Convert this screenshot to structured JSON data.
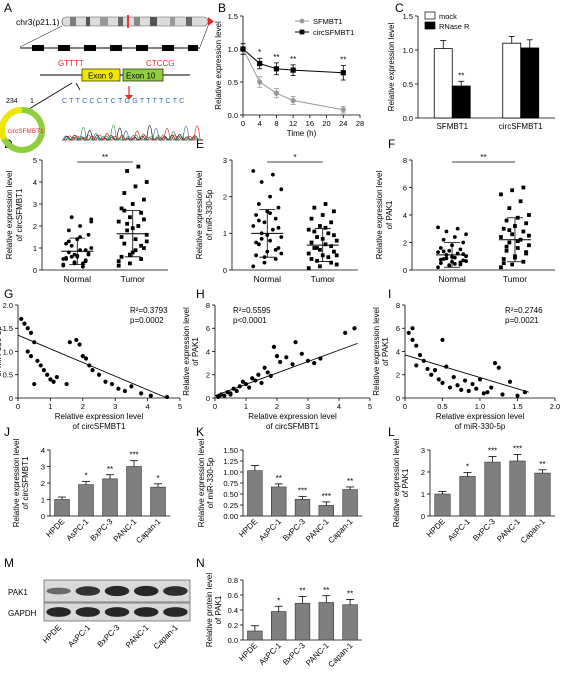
{
  "figure": {
    "letters": [
      "A",
      "B",
      "C",
      "D",
      "E",
      "F",
      "G",
      "H",
      "I",
      "J",
      "K",
      "L",
      "M",
      "N"
    ]
  },
  "panel_a": {
    "chromosome": "chr3(p21.1)",
    "exon9": "Exon 9",
    "exon10": "Exon 10",
    "left_seq": "GTTTT",
    "right_seq": "CTCCG",
    "circ_name": "circSFMBT1",
    "circ_len": "234",
    "circ_start": "1",
    "circ_exon_a": "Exon 9",
    "circ_exon_b": "Exon 10",
    "sanger_seq": "C T T C C C T C T G G T T T T C T C",
    "colors": {
      "exon": "#f1e600",
      "exon10": "#8fce3f",
      "red": "#e8262b",
      "chrom_band": "#b5b5b5"
    }
  },
  "chart_data": [
    {
      "id": "B",
      "type": "line",
      "ylabel": "Relative expression level",
      "xlabel": "Time (h)",
      "x": [
        0,
        4,
        8,
        12,
        24
      ],
      "xticks": [
        0,
        4,
        8,
        12,
        16,
        20,
        24,
        28
      ],
      "xlim": [
        0,
        28
      ],
      "ylim": [
        0,
        1.5
      ],
      "yticks": [
        0.0,
        0.5,
        1.0,
        1.5
      ],
      "legend_position": "top-right",
      "series": [
        {
          "name": "SFMBT1",
          "values": [
            1.0,
            0.5,
            0.33,
            0.22,
            0.08
          ],
          "errors": [
            0.08,
            0.08,
            0.07,
            0.06,
            0.05
          ],
          "color": "#999999",
          "marker": "circle"
        },
        {
          "name": "circSFMBT1",
          "values": [
            1.0,
            0.78,
            0.7,
            0.68,
            0.64
          ],
          "errors": [
            0.08,
            0.08,
            0.09,
            0.08,
            0.11
          ],
          "color": "#000000",
          "marker": "square"
        }
      ],
      "annotations": [
        {
          "x": 4,
          "text": "*"
        },
        {
          "x": 8,
          "text": "**"
        },
        {
          "x": 12,
          "text": "**"
        },
        {
          "x": 24,
          "text": "**"
        }
      ]
    },
    {
      "id": "C",
      "type": "bar",
      "ylabel": "Relative expression level",
      "categories": [
        "SFMBT1",
        "circSFMBT1"
      ],
      "ylim": [
        0,
        1.5
      ],
      "yticks": [
        0.0,
        0.5,
        1.0,
        1.5
      ],
      "legend_position": "top",
      "series": [
        {
          "name": "mock",
          "values": [
            1.02,
            1.1
          ],
          "errors": [
            0.12,
            0.1
          ],
          "color": "#ffffff"
        },
        {
          "name": "RNase R",
          "values": [
            0.47,
            1.03
          ],
          "errors": [
            0.07,
            0.12
          ],
          "color": "#000000"
        }
      ],
      "annotations": [
        {
          "category": "SFMBT1",
          "series": "RNase R",
          "text": "**"
        }
      ]
    },
    {
      "id": "D",
      "type": "scatter",
      "ylabel": "Relative expression level of circSFMBT1",
      "categories": [
        "Normal",
        "Tumor"
      ],
      "ylim": [
        0,
        5
      ],
      "yticks": [
        0,
        1,
        2,
        3,
        4,
        5
      ],
      "means": [
        0.85,
        1.65
      ],
      "sd": [
        0.6,
        1.05
      ],
      "groups": [
        [
          0.2,
          0.3,
          0.4,
          0.5,
          0.6,
          0.7,
          0.8,
          0.9,
          1.0,
          1.1,
          0.3,
          0.5,
          0.7,
          0.9,
          1.2,
          1.4,
          1.6,
          1.8,
          2.0,
          2.2,
          2.4,
          0.15,
          0.25,
          0.35,
          0.45,
          0.55,
          0.65,
          0.75,
          1.3,
          1.5,
          2.3,
          0.6
        ],
        [
          0.2,
          0.3,
          0.5,
          0.6,
          0.8,
          1.0,
          1.2,
          1.4,
          1.6,
          1.8,
          2.0,
          2.2,
          2.4,
          2.6,
          2.8,
          3.0,
          3.2,
          3.5,
          3.8,
          4.0,
          4.5,
          4.7,
          0.4,
          0.7,
          1.1,
          1.5,
          1.9,
          2.3,
          2.7,
          0.9,
          1.3,
          2.1
        ]
      ],
      "markers": [
        "circle",
        "square"
      ],
      "significance": "**"
    },
    {
      "id": "E",
      "type": "scatter",
      "ylabel": "Relative expression level of miR-330-5p",
      "categories": [
        "Normal",
        "Tumor"
      ],
      "ylim": [
        0,
        3
      ],
      "yticks": [
        0,
        1,
        2,
        3
      ],
      "means": [
        1.0,
        0.68
      ],
      "sd": [
        0.65,
        0.45
      ],
      "groups": [
        [
          0.1,
          0.2,
          0.3,
          0.4,
          0.5,
          0.6,
          0.7,
          0.8,
          0.9,
          1.0,
          1.1,
          1.2,
          1.3,
          1.4,
          1.5,
          1.6,
          1.7,
          1.8,
          2.0,
          2.2,
          2.4,
          2.6,
          2.7,
          0.35,
          0.55,
          0.75,
          0.95,
          1.15,
          1.35,
          1.55,
          0.45,
          0.85
        ],
        [
          0.05,
          0.1,
          0.2,
          0.3,
          0.4,
          0.5,
          0.6,
          0.7,
          0.8,
          0.9,
          1.0,
          1.1,
          1.2,
          1.3,
          1.4,
          1.5,
          1.6,
          1.7,
          1.8,
          0.15,
          0.25,
          0.35,
          0.45,
          0.55,
          0.65,
          0.75,
          0.85,
          0.95,
          1.05,
          1.15,
          0.4,
          0.6
        ]
      ],
      "markers": [
        "circle",
        "square"
      ],
      "significance": "*"
    },
    {
      "id": "F",
      "type": "scatter",
      "ylabel": "Relative expression level of PAK1",
      "categories": [
        "Normal",
        "Tumor"
      ],
      "ylim": [
        0,
        8
      ],
      "yticks": [
        0,
        2,
        4,
        6,
        8
      ],
      "means": [
        1.1,
        2.2
      ],
      "sd": [
        0.9,
        1.6
      ],
      "groups": [
        [
          0.2,
          0.3,
          0.4,
          0.5,
          0.6,
          0.7,
          0.8,
          0.9,
          1.0,
          1.1,
          1.2,
          1.3,
          1.4,
          1.5,
          1.6,
          1.8,
          2.0,
          2.2,
          2.4,
          2.6,
          2.8,
          3.0,
          3.1,
          0.35,
          0.55,
          0.75,
          0.95,
          1.15,
          1.35,
          0.45,
          0.65,
          0.85
        ],
        [
          0.2,
          0.4,
          0.6,
          0.8,
          1.0,
          1.2,
          1.4,
          1.6,
          1.8,
          2.0,
          2.2,
          2.4,
          2.6,
          2.8,
          3.0,
          3.2,
          3.4,
          3.6,
          3.8,
          4.0,
          4.5,
          5.0,
          5.5,
          5.8,
          6.0,
          0.5,
          0.9,
          1.3,
          1.7,
          2.1,
          2.5,
          2.9
        ]
      ],
      "markers": [
        "circle",
        "square"
      ],
      "significance": "**"
    },
    {
      "id": "G",
      "type": "scatter",
      "ylabel": "Relative expression level of miR-330-5p",
      "xlabel": "Relative expression level of circSFMBT1",
      "xlim": [
        0,
        5
      ],
      "xticks": [
        0,
        1,
        2,
        3,
        4,
        5
      ],
      "ylim": [
        0,
        2
      ],
      "yticks": [
        0,
        0.5,
        1.0,
        1.5,
        2.0
      ],
      "points": [
        [
          0.1,
          1.7
        ],
        [
          0.2,
          1.6
        ],
        [
          0.3,
          1.5
        ],
        [
          0.4,
          1.4
        ],
        [
          0.5,
          1.2
        ],
        [
          0.3,
          1.0
        ],
        [
          0.4,
          0.9
        ],
        [
          0.6,
          0.8
        ],
        [
          0.8,
          0.6
        ],
        [
          0.9,
          0.5
        ],
        [
          1.0,
          0.4
        ],
        [
          1.1,
          0.35
        ],
        [
          0.5,
          0.3
        ],
        [
          0.7,
          0.7
        ],
        [
          1.2,
          0.45
        ],
        [
          1.5,
          0.3
        ],
        [
          1.6,
          1.2
        ],
        [
          1.8,
          1.25
        ],
        [
          1.9,
          1.15
        ],
        [
          2.0,
          0.9
        ],
        [
          2.1,
          0.85
        ],
        [
          2.2,
          0.7
        ],
        [
          2.3,
          0.6
        ],
        [
          2.5,
          0.5
        ],
        [
          2.7,
          0.35
        ],
        [
          2.9,
          0.3
        ],
        [
          3.1,
          0.2
        ],
        [
          3.3,
          0.15
        ],
        [
          3.5,
          0.25
        ],
        [
          3.8,
          0.1
        ],
        [
          4.1,
          0.05
        ],
        [
          4.6,
          0.02
        ]
      ],
      "fit": [
        [
          0,
          1.35
        ],
        [
          4.6,
          0
        ]
      ],
      "stats": [
        "R²=0.3793",
        "p=0.0002"
      ]
    },
    {
      "id": "H",
      "type": "scatter",
      "ylabel": "Relative expression level of PAK1",
      "xlabel": "Relative expression level of circSFMBT1",
      "xlim": [
        0,
        5
      ],
      "xticks": [
        0,
        1,
        2,
        3,
        4,
        5
      ],
      "ylim": [
        0,
        8
      ],
      "yticks": [
        0,
        2,
        4,
        6,
        8
      ],
      "points": [
        [
          0.1,
          0.1
        ],
        [
          0.15,
          0.2
        ],
        [
          0.2,
          0.3
        ],
        [
          0.3,
          0.2
        ],
        [
          0.4,
          0.5
        ],
        [
          0.5,
          0.4
        ],
        [
          0.6,
          0.8
        ],
        [
          0.7,
          0.6
        ],
        [
          0.8,
          1.0
        ],
        [
          0.9,
          1.4
        ],
        [
          1.0,
          1.2
        ],
        [
          1.1,
          0.9
        ],
        [
          1.2,
          1.7
        ],
        [
          1.3,
          1.5
        ],
        [
          1.4,
          2.0
        ],
        [
          1.5,
          1.3
        ],
        [
          1.6,
          2.6
        ],
        [
          1.7,
          2.2
        ],
        [
          1.8,
          1.9
        ],
        [
          1.9,
          4.4
        ],
        [
          2.0,
          3.6
        ],
        [
          2.1,
          3.1
        ],
        [
          2.3,
          3.5
        ],
        [
          2.5,
          2.9
        ],
        [
          2.6,
          4.8
        ],
        [
          2.8,
          3.8
        ],
        [
          3.0,
          3.2
        ],
        [
          3.2,
          3.0
        ],
        [
          3.4,
          3.4
        ],
        [
          4.2,
          5.6
        ],
        [
          4.5,
          6.0
        ],
        [
          0.5,
          0.3
        ]
      ],
      "fit": [
        [
          0,
          0.2
        ],
        [
          4.6,
          4.7
        ]
      ],
      "stats": [
        "R²=0.5595",
        "p<0.0001"
      ]
    },
    {
      "id": "I",
      "type": "scatter",
      "ylabel": "Relative expression level of PAK1",
      "xlabel": "Relative expression level of miR-330-5p",
      "xlim": [
        0,
        2
      ],
      "xticks": [
        0,
        0.5,
        1.0,
        1.5,
        2.0
      ],
      "ylim": [
        0,
        8
      ],
      "yticks": [
        0,
        2,
        4,
        6,
        8
      ],
      "points": [
        [
          0.05,
          5.6
        ],
        [
          0.1,
          6.0
        ],
        [
          0.1,
          5.0
        ],
        [
          0.15,
          4.5
        ],
        [
          0.2,
          3.7
        ],
        [
          0.15,
          2.8
        ],
        [
          0.25,
          3.2
        ],
        [
          0.3,
          2.5
        ],
        [
          0.35,
          2.0
        ],
        [
          0.4,
          2.4
        ],
        [
          0.45,
          1.6
        ],
        [
          0.5,
          1.3
        ],
        [
          0.55,
          2.7
        ],
        [
          0.6,
          0.9
        ],
        [
          0.65,
          1.8
        ],
        [
          0.7,
          1.1
        ],
        [
          0.75,
          0.7
        ],
        [
          0.8,
          1.5
        ],
        [
          0.85,
          0.6
        ],
        [
          0.9,
          1.2
        ],
        [
          0.95,
          0.8
        ],
        [
          1.0,
          1.6
        ],
        [
          1.05,
          0.4
        ],
        [
          1.1,
          0.5
        ],
        [
          1.15,
          0.9
        ],
        [
          1.2,
          3.0
        ],
        [
          1.25,
          2.6
        ],
        [
          1.3,
          0.3
        ],
        [
          1.4,
          1.4
        ],
        [
          1.5,
          0.2
        ],
        [
          1.6,
          0.5
        ],
        [
          0.5,
          5.0
        ]
      ],
      "fit": [
        [
          0,
          3.7
        ],
        [
          1.65,
          0.5
        ]
      ],
      "stats": [
        "R²=0.2746",
        "p=0.0021"
      ]
    },
    {
      "id": "J",
      "type": "bar",
      "ylabel": "Relative expression level of circSFMBT1",
      "categories": [
        "HPDE",
        "AsPC-1",
        "BxPC-3",
        "PANC-1",
        "Capan-1"
      ],
      "ylim": [
        0,
        4
      ],
      "yticks": [
        0,
        1,
        2,
        3,
        4
      ],
      "values": [
        1.0,
        1.9,
        2.25,
        3.0,
        1.75
      ],
      "errors": [
        0.15,
        0.2,
        0.25,
        0.35,
        0.2
      ],
      "annotations": [
        "",
        "*",
        "**",
        "***",
        "*"
      ],
      "color": "#7f7f7f"
    },
    {
      "id": "K",
      "type": "bar",
      "ylabel": "Relative expression level of miR-330-5p",
      "categories": [
        "HPDE",
        "AsPC-1",
        "BxPC-3",
        "PANC-1",
        "Capan-1"
      ],
      "ylim": [
        0,
        1.5
      ],
      "yticks": [
        0.0,
        0.25,
        0.5,
        0.75,
        1.0,
        1.25,
        1.5
      ],
      "values": [
        1.03,
        0.66,
        0.38,
        0.24,
        0.6
      ],
      "errors": [
        0.12,
        0.07,
        0.06,
        0.08,
        0.06
      ],
      "annotations": [
        "",
        "**",
        "***",
        "***",
        "**"
      ],
      "color": "#7f7f7f"
    },
    {
      "id": "L",
      "type": "bar",
      "ylabel": "Relative expression level of PAK1",
      "categories": [
        "HPDE",
        "AsPC-1",
        "BxPC-3",
        "PANC-1",
        "Capan-1"
      ],
      "ylim": [
        0,
        3
      ],
      "yticks": [
        0,
        1,
        2,
        3
      ],
      "values": [
        1.0,
        1.8,
        2.45,
        2.5,
        1.95
      ],
      "errors": [
        0.12,
        0.18,
        0.25,
        0.3,
        0.15
      ],
      "annotations": [
        "",
        "*",
        "***",
        "***",
        "**"
      ],
      "color": "#7f7f7f"
    },
    {
      "id": "N",
      "type": "bar",
      "ylabel": "Relative protein level of PAK1",
      "categories": [
        "HPDE",
        "AsPC-1",
        "BxPC-3",
        "PANC-1",
        "Capan-1"
      ],
      "ylim": [
        0,
        0.8
      ],
      "yticks": [
        0.0,
        0.2,
        0.4,
        0.6,
        0.8
      ],
      "values": [
        0.12,
        0.38,
        0.49,
        0.5,
        0.47
      ],
      "errors": [
        0.07,
        0.07,
        0.09,
        0.09,
        0.07
      ],
      "annotations": [
        "",
        "*",
        "**",
        "**",
        "**"
      ],
      "color": "#7f7f7f"
    }
  ],
  "blot": {
    "labels": [
      "PAK1",
      "GAPDH"
    ],
    "lanes": [
      "HPDE",
      "AsPC-1",
      "BxPC-3",
      "PANC-1",
      "Capan-1"
    ],
    "band_intensity": {
      "PAK1": [
        0.35,
        0.8,
        0.9,
        0.9,
        0.85
      ],
      "GAPDH": [
        0.9,
        0.9,
        0.9,
        0.9,
        0.9
      ]
    }
  }
}
